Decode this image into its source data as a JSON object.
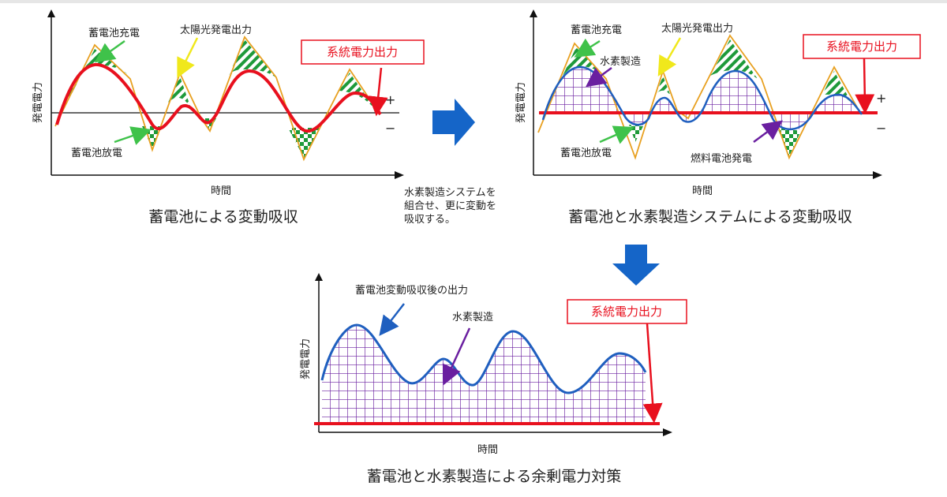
{
  "panel1": {
    "ylabel": "発電電力",
    "xlabel": "時間",
    "charge_label": "蓄電池充電",
    "solar_label": "太陽光発電出力",
    "grid_label": "系統電力出力",
    "discharge_label": "蓄電池放電",
    "plus": "+",
    "minus": "−",
    "caption": "蓄電池による変動吸収"
  },
  "note": [
    "水素製造システムを",
    "組合せ、更に変動を",
    "吸収する。"
  ],
  "panel2": {
    "ylabel": "発電電力",
    "xlabel": "時間",
    "charge_label": "蓄電池充電",
    "solar_label": "太陽光発電出力",
    "h2_label": "水素製造",
    "grid_label": "系統電力出力",
    "discharge_label": "蓄電池放電",
    "fc_label": "燃料電池発電",
    "plus": "+",
    "minus": "−",
    "caption": "蓄電池と水素製造システムによる変動吸収"
  },
  "panel3": {
    "ylabel": "発電電力",
    "xlabel": "時間",
    "after_label": "蓄電池変動吸収後の出力",
    "h2_label": "水素製造",
    "grid_label": "系統電力出力",
    "caption": "蓄電池と水素製造による余剰電力対策"
  },
  "colors": {
    "grid_output": "#e8101e",
    "smoothed_output": "#1f5fbf",
    "solar_line": "#e8a020",
    "battery_fill": "#1e9a3a",
    "hydrogen_fill": "#6a1fa0",
    "arrow_fill": "#1565c8",
    "solar_arrow": "#f0e81c",
    "battery_arrow": "#3fc24a"
  }
}
